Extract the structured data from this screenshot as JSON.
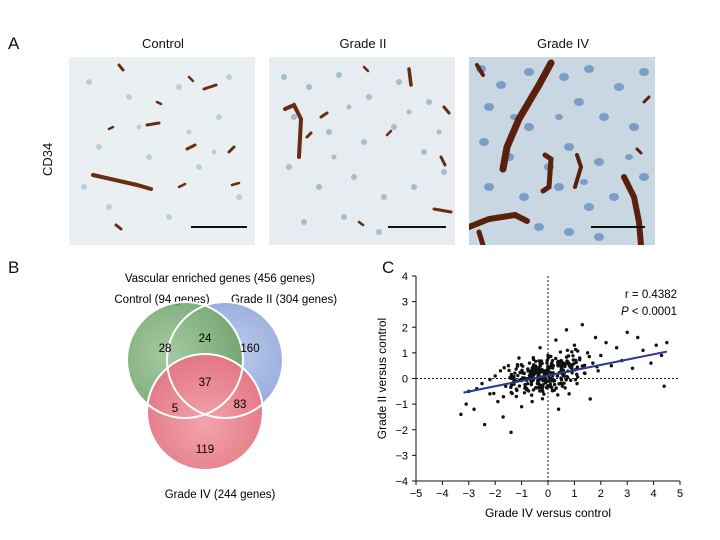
{
  "panel_a": {
    "letter": "A",
    "row_label": "CD34",
    "columns": [
      "Control",
      "Grade II",
      "Grade IV"
    ]
  },
  "panel_b": {
    "letter": "B",
    "title": "Vascular enriched genes (456 genes)",
    "sets": {
      "control": "Control (94 genes)",
      "grade2": "Grade II (304 genes)",
      "grade4": "Grade IV (244 genes)"
    },
    "regions": {
      "control_only": "28",
      "grade2_only": "160",
      "grade4_only": "119",
      "control_grade2": "24",
      "control_grade4": "5",
      "grade2_grade4": "83",
      "all": "37"
    },
    "colors": {
      "control": "#5f9e5a",
      "grade2": "#7f9bd6",
      "grade4": "#e3606f"
    }
  },
  "panel_c": {
    "letter": "C",
    "stats": {
      "r": "r = 0.4382",
      "p_italic": "P",
      "p_rest": " < 0.0001"
    }
  },
  "chart_data": {
    "type": "scatter",
    "title": "",
    "xlabel": "Grade IV versus control",
    "ylabel": "Grade II versus control",
    "xlim": [
      -5,
      5
    ],
    "ylim": [
      -4,
      4
    ],
    "xticks": [
      "−5",
      "−4",
      "−3",
      "−2",
      "−1",
      "0",
      "1",
      "2",
      "3",
      "4",
      "5"
    ],
    "yticks": [
      "4",
      "3",
      "2",
      "1",
      "0",
      "−1",
      "−2",
      "−3",
      "−4"
    ],
    "regression": {
      "x": [
        -3.2,
        4.5
      ],
      "y": [
        -0.55,
        1.05
      ],
      "color": "#2b3a8f"
    },
    "reference_lines": {
      "x0": "dotted",
      "y0": "dotted"
    },
    "points_approx": [
      [
        -3.3,
        -1.4
      ],
      [
        -3.1,
        -1.0
      ],
      [
        -3.0,
        -0.5
      ],
      [
        -2.8,
        -1.2
      ],
      [
        -2.7,
        -0.4
      ],
      [
        -2.5,
        -0.2
      ],
      [
        -2.4,
        -1.8
      ],
      [
        -2.2,
        -0.6
      ],
      [
        -2.0,
        0.1
      ],
      [
        -1.9,
        -0.9
      ],
      [
        -1.8,
        0.3
      ],
      [
        -1.7,
        -1.5
      ],
      [
        -1.6,
        -0.3
      ],
      [
        -1.5,
        0.5
      ],
      [
        -1.4,
        -2.1
      ],
      [
        -1.3,
        0.0
      ],
      [
        -1.2,
        -0.7
      ],
      [
        -1.1,
        0.8
      ],
      [
        -1.0,
        -1.1
      ],
      [
        -0.9,
        0.2
      ],
      [
        -0.8,
        -0.4
      ],
      [
        -0.7,
        0.6
      ],
      [
        -0.6,
        -0.9
      ],
      [
        -0.5,
        0.4
      ],
      [
        -0.4,
        -0.2
      ],
      [
        -0.3,
        1.2
      ],
      [
        -0.2,
        -0.5
      ],
      [
        -0.1,
        0.3
      ],
      [
        0.0,
        0.9
      ],
      [
        0.1,
        -0.3
      ],
      [
        0.2,
        0.5
      ],
      [
        0.3,
        1.5
      ],
      [
        0.4,
        -1.2
      ],
      [
        0.5,
        0.7
      ],
      [
        0.6,
        0.1
      ],
      [
        0.7,
        1.9
      ],
      [
        0.8,
        -0.6
      ],
      [
        0.9,
        0.4
      ],
      [
        1.0,
        1.3
      ],
      [
        1.1,
        -0.2
      ],
      [
        1.2,
        0.8
      ],
      [
        1.3,
        2.1
      ],
      [
        1.4,
        0.2
      ],
      [
        1.5,
        1.0
      ],
      [
        1.6,
        -0.8
      ],
      [
        1.7,
        0.6
      ],
      [
        1.8,
        1.6
      ],
      [
        1.9,
        0.3
      ],
      [
        2.0,
        0.9
      ],
      [
        2.2,
        1.4
      ],
      [
        2.4,
        0.5
      ],
      [
        2.6,
        1.2
      ],
      [
        2.8,
        0.7
      ],
      [
        3.0,
        1.8
      ],
      [
        3.2,
        0.4
      ],
      [
        3.4,
        1.6
      ],
      [
        3.6,
        1.1
      ],
      [
        3.9,
        0.6
      ],
      [
        4.1,
        1.3
      ],
      [
        4.4,
        -0.3
      ],
      [
        4.5,
        1.4
      ],
      [
        4.3,
        0.9
      ]
    ]
  }
}
